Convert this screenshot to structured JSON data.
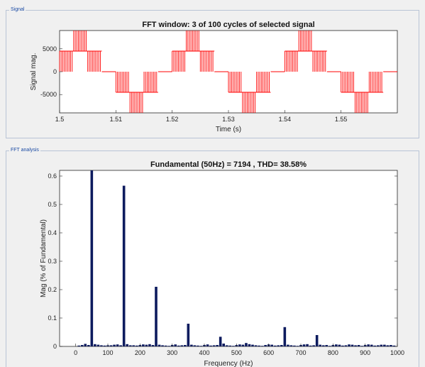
{
  "signal_panel": {
    "label": "Signal"
  },
  "fft_panel": {
    "label": "FFT analysis"
  },
  "colors": {
    "signal": "#ff0000",
    "spectrum": "#0d1b5e",
    "axes_bg": "#ffffff",
    "panel_border": "#b9c4d6",
    "panel_label": "#1a4aa3"
  },
  "chart_data": [
    {
      "type": "line",
      "title": "FFT window: 3 of 100 cycles of selected signal",
      "xlabel": "Time (s)",
      "ylabel": "Signal mag.",
      "xlim": [
        1.5,
        1.56
      ],
      "ylim": [
        -9000,
        9000
      ],
      "xticks": [
        1.5,
        1.51,
        1.52,
        1.53,
        1.54,
        1.55
      ],
      "yticks": [
        -5000,
        0,
        5000
      ],
      "series": [
        {
          "fundamental_hz": 50,
          "levels": [
            9000,
            4500,
            0,
            -4500,
            -9000
          ],
          "step_pattern": [
            1,
            2,
            1,
            0,
            -1,
            -2,
            -1,
            0
          ],
          "pwm_chopping": true
        }
      ]
    },
    {
      "type": "bar",
      "title": "Fundamental (50Hz) = 7194 , THD= 38.58%",
      "xlabel": "Frequency (Hz)",
      "ylabel": "Mag (% of Fundamental)",
      "xlim": [
        -50,
        1000
      ],
      "ylim": [
        0,
        0.62
      ],
      "xticks": [
        0,
        100,
        200,
        300,
        400,
        500,
        600,
        700,
        800,
        900,
        1000
      ],
      "yticks": [
        0,
        0.1,
        0.2,
        0.3,
        0.4,
        0.5,
        0.6
      ],
      "x": [
        10,
        20,
        30,
        40,
        50,
        60,
        70,
        80,
        90,
        100,
        110,
        120,
        130,
        140,
        150,
        160,
        170,
        180,
        190,
        200,
        210,
        220,
        230,
        240,
        250,
        260,
        270,
        280,
        290,
        300,
        310,
        320,
        330,
        340,
        350,
        360,
        370,
        380,
        390,
        400,
        410,
        420,
        430,
        440,
        450,
        460,
        470,
        480,
        490,
        500,
        510,
        520,
        530,
        540,
        550,
        560,
        570,
        580,
        590,
        600,
        610,
        620,
        630,
        640,
        650,
        660,
        670,
        680,
        690,
        700,
        710,
        720,
        730,
        740,
        750,
        760,
        770,
        780,
        790,
        800,
        810,
        820,
        830,
        840,
        850,
        860,
        870,
        880,
        890,
        900,
        910,
        920,
        930,
        940,
        950,
        960,
        970,
        980,
        990
      ],
      "values": [
        0.003,
        0.005,
        0.009,
        0.005,
        0.62,
        0.008,
        0.006,
        0.004,
        0.003,
        0.004,
        0.004,
        0.006,
        0.007,
        0.004,
        0.566,
        0.008,
        0.004,
        0.004,
        0.003,
        0.005,
        0.007,
        0.006,
        0.008,
        0.005,
        0.21,
        0.006,
        0.004,
        0.003,
        0.002,
        0.005,
        0.007,
        0.003,
        0.004,
        0.005,
        0.08,
        0.006,
        0.004,
        0.003,
        0.002,
        0.005,
        0.007,
        0.003,
        0.004,
        0.005,
        0.034,
        0.01,
        0.004,
        0.003,
        0.002,
        0.005,
        0.007,
        0.006,
        0.012,
        0.008,
        0.006,
        0.004,
        0.003,
        0.002,
        0.005,
        0.007,
        0.006,
        0.003,
        0.004,
        0.005,
        0.068,
        0.006,
        0.004,
        0.003,
        0.002,
        0.005,
        0.007,
        0.008,
        0.003,
        0.004,
        0.04,
        0.006,
        0.004,
        0.005,
        0.002,
        0.005,
        0.007,
        0.006,
        0.003,
        0.004,
        0.007,
        0.006,
        0.004,
        0.005,
        0.002,
        0.005,
        0.007,
        0.006,
        0.003,
        0.004,
        0.006,
        0.006,
        0.004,
        0.005,
        0.003
      ]
    }
  ]
}
